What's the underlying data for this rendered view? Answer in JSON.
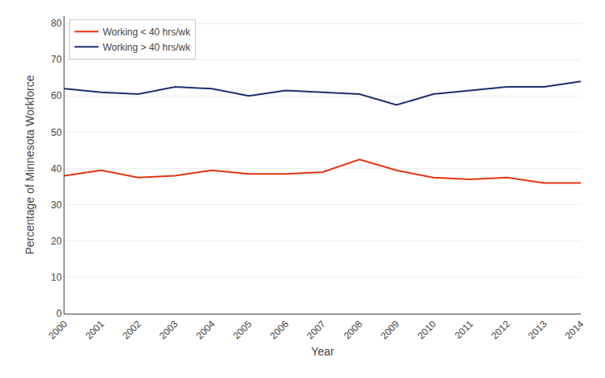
{
  "chart_data": {
    "type": "line",
    "xlabel": "Year",
    "ylabel": "Percentage of Minnesota Workforce",
    "x": [
      2000,
      2001,
      2002,
      2003,
      2004,
      2005,
      2006,
      2007,
      2008,
      2009,
      2010,
      2011,
      2012,
      2013,
      2014
    ],
    "series": [
      {
        "name": "Working < 40 hrs/wk",
        "color": "#e63312",
        "values": [
          38,
          39.5,
          37.5,
          38,
          39.5,
          38.5,
          38.5,
          39,
          42.5,
          39.5,
          37.5,
          37,
          37.5,
          36,
          36
        ]
      },
      {
        "name": "Working > 40 hrs/wk",
        "color": "#1f2f6e",
        "values": [
          62,
          61,
          60.5,
          62.5,
          62,
          60,
          61.5,
          61,
          60.5,
          57.5,
          60.5,
          61.5,
          62.5,
          62.5,
          64
        ]
      }
    ],
    "xlim": [
      2000,
      2014
    ],
    "xticks": [
      2000,
      2001,
      2002,
      2003,
      2004,
      2005,
      2006,
      2007,
      2008,
      2009,
      2010,
      2011,
      2012,
      2013,
      2014
    ],
    "ylim": [
      0,
      82
    ],
    "yticks": [
      0,
      10,
      20,
      30,
      40,
      50,
      60,
      70,
      80
    ],
    "grid": "y",
    "legend": "upper left"
  }
}
